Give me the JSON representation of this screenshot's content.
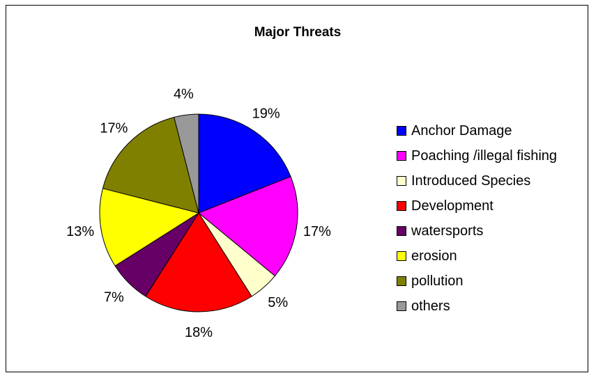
{
  "chart_data": {
    "type": "pie",
    "title": "Major Threats",
    "slices": [
      {
        "label": "Anchor Damage",
        "value": 19,
        "display": "19%",
        "color": "#0000FF"
      },
      {
        "label": "Poaching /illegal fishing",
        "value": 17,
        "display": "17%",
        "color": "#FF00FF"
      },
      {
        "label": "Introduced Species",
        "value": 5,
        "display": "5%",
        "color": "#FFFFCC"
      },
      {
        "label": "Development",
        "value": 18,
        "display": "18%",
        "color": "#FF0000"
      },
      {
        "label": "watersports",
        "value": 7,
        "display": "7%",
        "color": "#660066"
      },
      {
        "label": "erosion",
        "value": 13,
        "display": "13%",
        "color": "#FFFF00"
      },
      {
        "label": "pollution",
        "value": 17,
        "display": "17%",
        "color": "#808000"
      },
      {
        "label": "others",
        "value": 4,
        "display": "4%",
        "color": "#999999"
      }
    ],
    "legend_position": "right",
    "start": "top, clockwise"
  }
}
